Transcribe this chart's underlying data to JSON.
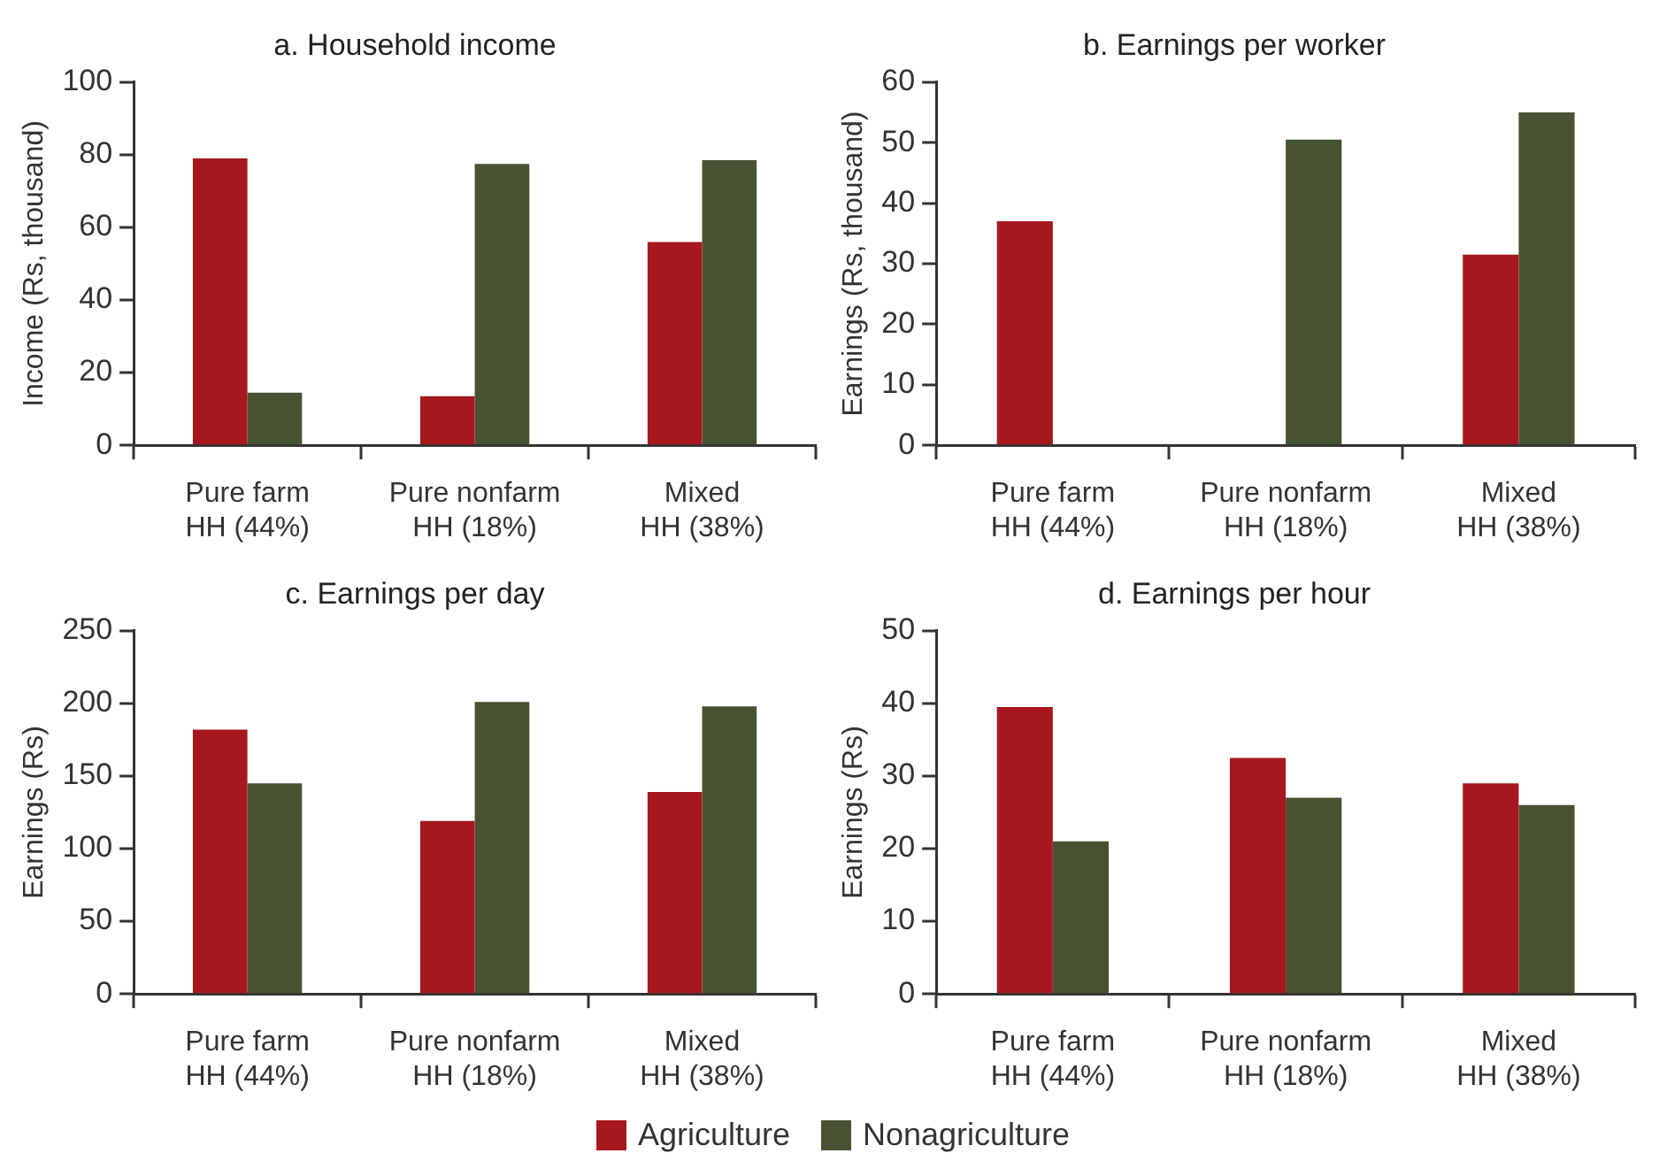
{
  "chart_data": [
    {
      "type": "bar",
      "title": "a. Household income",
      "ylabel": "Income (Rs, thousand)",
      "categories": [
        "Pure farm\nHH (44%)",
        "Pure nonfarm\nHH (18%)",
        "Mixed\nHH (38%)"
      ],
      "series": [
        {
          "color": "#a6181e",
          "values": [
            79,
            13.5,
            56
          ]
        },
        {
          "color": "#475233",
          "values": [
            14.5,
            77.5,
            78.5
          ]
        }
      ],
      "ylim": [
        0,
        100
      ],
      "yticks": [
        0,
        20,
        40,
        60,
        80,
        100
      ],
      "grid": false
    },
    {
      "type": "bar",
      "title": "b. Earnings per worker",
      "ylabel": "Earnings (Rs, thousand)",
      "categories": [
        "Pure farm\nHH (44%)",
        "Pure nonfarm\nHH (18%)",
        "Mixed\nHH (38%)"
      ],
      "series": [
        {
          "color": "#a6181e",
          "values": [
            37,
            null,
            31.5
          ]
        },
        {
          "color": "#475233",
          "values": [
            null,
            50.5,
            55
          ]
        }
      ],
      "ylim": [
        0,
        60
      ],
      "yticks": [
        0,
        10,
        20,
        30,
        40,
        50,
        60
      ],
      "grid": false
    },
    {
      "type": "bar",
      "title": "c. Earnings per day",
      "ylabel": "Earnings (Rs)",
      "categories": [
        "Pure farm\nHH (44%)",
        "Pure nonfarm\nHH (18%)",
        "Mixed\nHH (38%)"
      ],
      "series": [
        {
          "color": "#a6181e",
          "values": [
            182,
            119,
            139
          ]
        },
        {
          "color": "#475233",
          "values": [
            145,
            201,
            198
          ]
        }
      ],
      "ylim": [
        0,
        250
      ],
      "yticks": [
        0,
        50,
        100,
        150,
        200,
        250
      ],
      "grid": false
    },
    {
      "type": "bar",
      "title": "d. Earnings per hour",
      "ylabel": "Earnings (Rs)",
      "categories": [
        "Pure farm\nHH (44%)",
        "Pure nonfarm\nHH (18%)",
        "Mixed\nHH (38%)"
      ],
      "series": [
        {
          "name": "Agriculture",
          "color": "#a6181e",
          "values": [
            39.5,
            32.5,
            29
          ]
        },
        {
          "name": "Nonagriculture",
          "color": "#475233",
          "values": [
            21,
            27,
            26
          ]
        }
      ],
      "ylim": [
        0,
        50
      ],
      "yticks": [
        0,
        10,
        20,
        30,
        40,
        50
      ],
      "grid": false,
      "legend": "bottom"
    }
  ]
}
